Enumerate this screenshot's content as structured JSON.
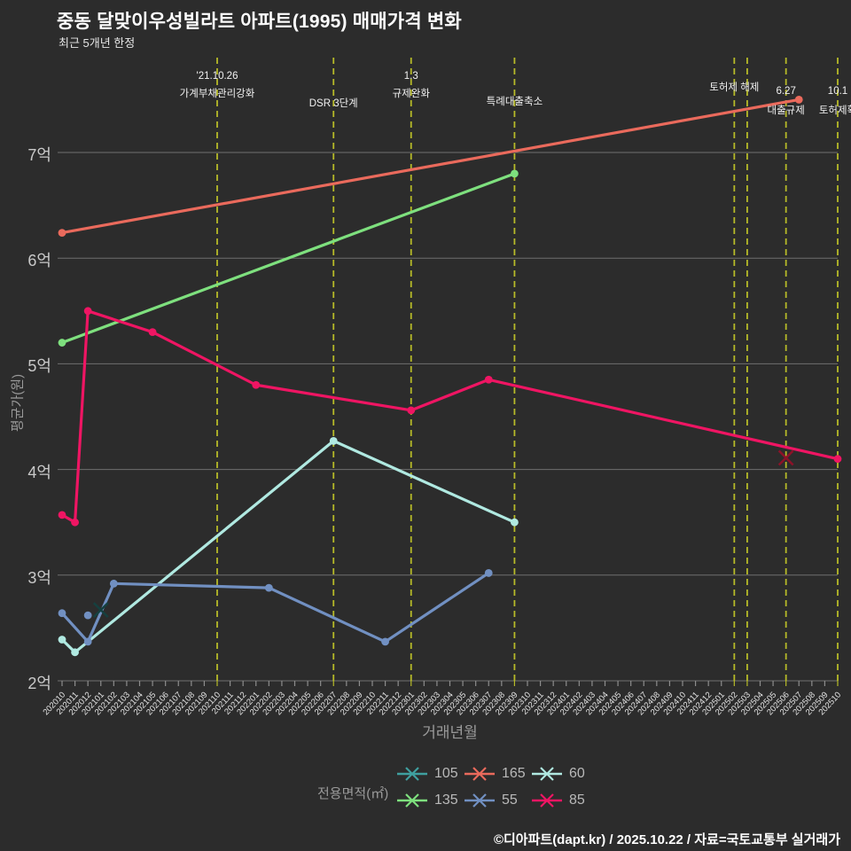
{
  "header": {
    "title": "중동 달맞이우성빌라트 아파트(1995) 매매가격 변화",
    "subtitle": "최근 5개년 한정"
  },
  "axes": {
    "y_title": "평균가(원)",
    "x_title": "거래년월",
    "y_ticks": [
      {
        "label": "2억",
        "value": 2
      },
      {
        "label": "3억",
        "value": 3
      },
      {
        "label": "4억",
        "value": 4
      },
      {
        "label": "5억",
        "value": 5
      },
      {
        "label": "6억",
        "value": 6
      },
      {
        "label": "7억",
        "value": 7
      }
    ],
    "x_labels": [
      "202010",
      "202011",
      "202012",
      "202101",
      "202102",
      "202103",
      "202104",
      "202105",
      "202106",
      "202107",
      "202108",
      "202109",
      "202110",
      "202111",
      "202112",
      "202201",
      "202202",
      "202203",
      "202204",
      "202205",
      "202206",
      "202207",
      "202208",
      "202209",
      "202210",
      "202211",
      "202212",
      "202301",
      "202302",
      "202303",
      "202304",
      "202305",
      "202306",
      "202307",
      "202308",
      "202309",
      "202310",
      "202311",
      "202312",
      "202401",
      "202402",
      "202403",
      "202404",
      "202405",
      "202406",
      "202407",
      "202408",
      "202409",
      "202410",
      "202411",
      "202412",
      "202501",
      "202502",
      "202503",
      "202504",
      "202505",
      "202506",
      "202507",
      "202508",
      "202509",
      "202510"
    ]
  },
  "vline_months": [
    "202110",
    "202207",
    "202301",
    "202309",
    "202502",
    "202503",
    "202506",
    "202510"
  ],
  "annotations": [
    {
      "month": "202110",
      "rows": [
        {
          "text": "'21.10.26",
          "y": 80
        },
        {
          "text": "가계부채관리강화",
          "y": 97
        }
      ]
    },
    {
      "month": "202207",
      "rows": [
        {
          "text": "DSR 3단계",
          "y": 108
        }
      ]
    },
    {
      "month": "202301",
      "rows": [
        {
          "text": "1.3",
          "y": 80
        },
        {
          "text": "규제완화",
          "y": 97
        }
      ]
    },
    {
      "month": "202309",
      "rows": [
        {
          "text": "특례대출축소",
          "y": 106
        }
      ]
    },
    {
      "month": "202502",
      "rows": [
        {
          "text": "토허제 해제",
          "y": 90
        }
      ]
    },
    {
      "month": "202506",
      "rows": [
        {
          "text": "6.27",
          "y": 97
        },
        {
          "text": "대출규제",
          "y": 116
        }
      ]
    },
    {
      "month": "202510",
      "rows": [
        {
          "text": "10.1",
          "y": 97
        },
        {
          "text": "토허제확",
          "y": 116
        }
      ]
    }
  ],
  "legend": {
    "title": "전용면적(㎡)",
    "items": [
      {
        "label": "105",
        "color": "#3fa0a0"
      },
      {
        "label": "165",
        "color": "#ea6a5c"
      },
      {
        "label": "60",
        "color": "#b0e9e1"
      },
      {
        "label": "135",
        "color": "#7ee07e"
      },
      {
        "label": "55",
        "color": "#7190c2"
      },
      {
        "label": "85",
        "color": "#ef1563"
      }
    ]
  },
  "footer": {
    "credit": "©디아파트(dapt.kr) / 2025.10.22 / 자료=국토교통부 실거래가"
  },
  "chart_data": {
    "type": "line",
    "title": "중동 달맞이우성빌라트 아파트(1995) 매매가격 변화",
    "subtitle": "최근 5개년 한정",
    "xlabel": "거래년월",
    "ylabel": "평균가(원)",
    "y_unit": "억원",
    "ylim": [
      2,
      7.6
    ],
    "x_range": [
      "202010",
      "202510"
    ],
    "grid": true,
    "legend_position": "bottom",
    "legend_title": "전용면적(㎡)",
    "series": [
      {
        "name": "165",
        "color": "#ea6a5c",
        "points": [
          [
            "202010",
            6.24
          ],
          [
            "202507",
            7.5
          ]
        ]
      },
      {
        "name": "135",
        "color": "#7ee07e",
        "points": [
          [
            "202010",
            5.2
          ],
          [
            "202309",
            6.8
          ]
        ]
      },
      {
        "name": "85",
        "color": "#ef1563",
        "points": [
          [
            "202010",
            3.57
          ],
          [
            "202011",
            3.5
          ],
          [
            "202012",
            5.5
          ],
          [
            "202105",
            5.3
          ],
          [
            "202201",
            4.8
          ],
          [
            "202301",
            4.56
          ],
          [
            "202307",
            4.85
          ],
          [
            "202510",
            4.1
          ]
        ],
        "x_markers": [
          [
            "202506",
            4.11
          ]
        ],
        "x_marker_color": "#8c1228"
      },
      {
        "name": "60",
        "color": "#b0e9e1",
        "points": [
          [
            "202010",
            2.39
          ],
          [
            "202011",
            2.27
          ],
          [
            "202207",
            4.27
          ],
          [
            "202309",
            3.5
          ]
        ]
      },
      {
        "name": "55",
        "color": "#7190c2",
        "points": [
          [
            "202010",
            2.64
          ],
          [
            "202012",
            2.37
          ],
          [
            "202102",
            2.92
          ],
          [
            "202202",
            2.88
          ],
          [
            "202211",
            2.37
          ],
          [
            "202307",
            3.02
          ]
        ],
        "extra_dots": [
          [
            "202012",
            2.62
          ]
        ]
      },
      {
        "name": "105",
        "color": "#3fa0a0",
        "marker": "x-thin",
        "marker_color": "#15403f",
        "points": [
          [
            "202101",
            2.67
          ]
        ]
      }
    ],
    "event_lines": [
      {
        "month": "202110",
        "label": "'21.10.26 가계부채관리강화"
      },
      {
        "month": "202207",
        "label": "DSR 3단계"
      },
      {
        "month": "202301",
        "label": "1.3 규제완화"
      },
      {
        "month": "202309",
        "label": "특례대출축소"
      },
      {
        "month": "202502",
        "label": "토허제 해제"
      },
      {
        "month": "202503",
        "label": "토허제 해제"
      },
      {
        "month": "202506",
        "label": "6.27 대출규제"
      },
      {
        "month": "202510",
        "label": "10.1 토허제확"
      }
    ]
  }
}
